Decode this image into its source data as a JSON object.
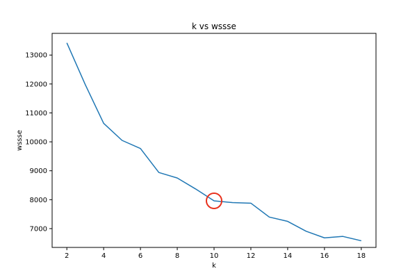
{
  "chart_data": {
    "type": "line",
    "title": "k vs wssse",
    "xlabel": "k",
    "ylabel": "wssse",
    "xlim": [
      1.2,
      18.8
    ],
    "ylim": [
      6350,
      13750
    ],
    "xticks": [
      2,
      4,
      6,
      8,
      10,
      12,
      14,
      16,
      18
    ],
    "yticks": [
      7000,
      8000,
      9000,
      10000,
      11000,
      12000,
      13000
    ],
    "grid": false,
    "series": [
      {
        "color": "#1f77b4",
        "x": [
          2,
          3,
          4,
          5,
          6,
          7,
          8,
          9,
          10,
          11,
          12,
          13,
          14,
          15,
          16,
          17,
          18
        ],
        "y": [
          13420,
          11980,
          10640,
          10050,
          9770,
          8940,
          8750,
          8370,
          7960,
          7900,
          7880,
          7400,
          7250,
          6910,
          6680,
          6730,
          6580
        ]
      }
    ],
    "annotations": [
      {
        "type": "circle-marker",
        "x": 10,
        "y": 7960,
        "color": "#e8301c"
      }
    ]
  }
}
